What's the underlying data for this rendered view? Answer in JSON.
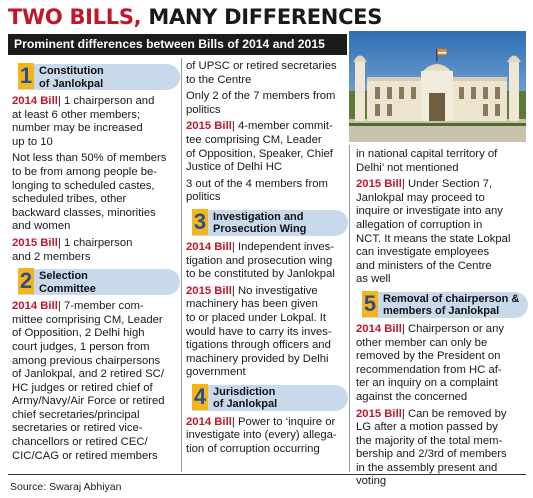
{
  "headline": {
    "red": "TWO BILLS,",
    "dark": "MANY DIFFERENCES"
  },
  "subheading": "Prominent differences between Bills of 2014 and 2015",
  "sections": [
    {
      "num": "1",
      "title_lines": [
        "Constitution",
        "of Janlokpal"
      ]
    },
    {
      "num": "2",
      "title_lines": [
        "Selection",
        "Committee"
      ]
    },
    {
      "num": "3",
      "title_lines": [
        "Investigation and",
        "Prosecution Wing"
      ]
    },
    {
      "num": "4",
      "title_lines": [
        "Jurisdiction",
        "of Janlokpal"
      ]
    },
    {
      "num": "5",
      "title_lines": [
        "Removal of chairperson &",
        "members of Janlokpal"
      ]
    }
  ],
  "bill_2014": "2014 Bill",
  "bill_2015": "2015 Bill",
  "col1": {
    "s1_2014": [
      "1 chairperson and",
      "at least 6 other members;",
      "number may be increased",
      "up to 10"
    ],
    "s1_note": [
      "Not less than 50% of members",
      "to be from among people be-",
      "longing to scheduled castes,",
      "scheduled tribes, other",
      "backward classes, minorities",
      "and women"
    ],
    "s1_2015": [
      "1 chairperson",
      "and 2 members"
    ],
    "s2_2014": [
      "7-member com-",
      "mittee comprising CM, Leader",
      "of Opposition, 2 Delhi high",
      "court judges, 1 person from",
      "among previous chairpersons",
      "of Janlokpal, and 2 retired SC/",
      "HC judges or retired chief of",
      "Army/Navy/Air Force or retired",
      "chief secretaries/principal",
      "secretaries or retired vice-",
      "chancellors or retired CEC/",
      "CIC/CAG or retired members"
    ]
  },
  "col2": {
    "cont": [
      "of UPSC or retired secretaries",
      "to the Centre"
    ],
    "note1": [
      "Only 2 of the 7 members from",
      "politics"
    ],
    "s2_2015": [
      "4-member commit-",
      "tee comprising CM, Leader",
      "of Opposition, Speaker, Chief",
      "Justice of Delhi HC"
    ],
    "note2": [
      "3 out of the 4 members from",
      "politics"
    ],
    "s3_2014": [
      "Independent inves-",
      "tigation and prosecution wing",
      "to be constituted by Janlokpal"
    ],
    "s3_2015": [
      "No investigative",
      "machinery has been given",
      "to or placed under Lokpal. It",
      "would have to carry its inves-",
      "tigations through officers and",
      "machinery provided by Delhi",
      "government"
    ],
    "s4_2014": [
      "Power to ‘inquire or",
      "investigate into (every) allega-",
      "tion of corruption occurring"
    ]
  },
  "col3": {
    "cont": [
      "in national capital territory of",
      "Delhi’ not mentioned"
    ],
    "s4_2015": [
      "Under Section 7,",
      "Janlokpal may proceed to",
      "inquire or investigate into any",
      "allegation of corruption in",
      "NCT. It means the state Lokpal",
      "can investigate employees",
      "and ministers of the Centre",
      "as well"
    ],
    "s5_2014": [
      "Chairperson or any",
      "other member can only be",
      "removed by the President on",
      "recommendation from HC af-",
      "ter an inquiry on a complaint",
      "against the concerned"
    ],
    "s5_2015": [
      "Can be removed by",
      "LG after a motion passed by",
      "the majority of the total mem-",
      "bership and 2/3rd of members",
      "in the assembly present and",
      "voting"
    ]
  },
  "photo": {
    "subject": "Delhi Assembly building"
  },
  "source": "Source: Swaraj Abhiyan"
}
